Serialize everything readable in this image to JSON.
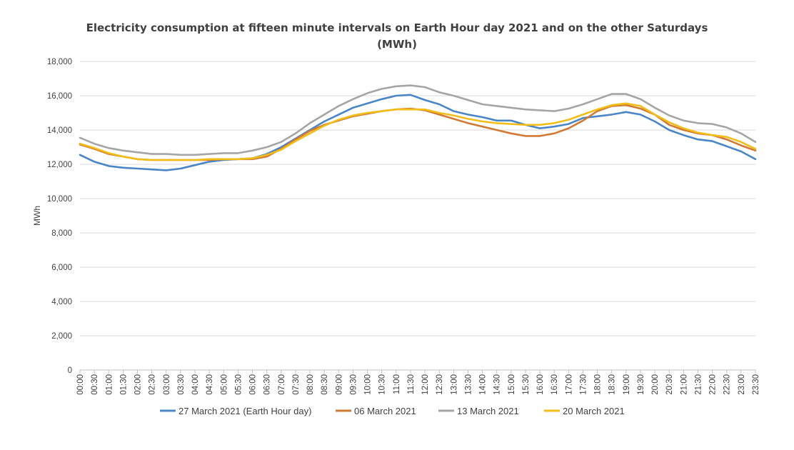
{
  "chart_data": {
    "type": "line",
    "title": "Electricity consumption at fifteen minute intervals on Earth Hour day 2021 and on the other Saturdays",
    "subtitle": "(MWh)",
    "xlabel": "",
    "ylabel": "MWh",
    "ylim": [
      0,
      18000
    ],
    "yticks": [
      "0",
      "2,000",
      "4,000",
      "6,000",
      "8,000",
      "10,000",
      "12,000",
      "14,000",
      "16,000",
      "18,000"
    ],
    "grid": true,
    "legend_position": "bottom",
    "categories": [
      "00:00",
      "00:30",
      "01:00",
      "01:30",
      "02:00",
      "02:30",
      "03:00",
      "03:30",
      "04:00",
      "04:30",
      "05:00",
      "05:30",
      "06:00",
      "06:30",
      "07:00",
      "07:30",
      "08:00",
      "08:30",
      "09:00",
      "09:30",
      "10:00",
      "10:30",
      "11:00",
      "11:30",
      "12:00",
      "12:30",
      "13:00",
      "13:30",
      "14:00",
      "14:30",
      "15:00",
      "15:30",
      "16:00",
      "16:30",
      "17:00",
      "17:30",
      "18:00",
      "18:30",
      "19:00",
      "19:30",
      "20:00",
      "20:30",
      "21:00",
      "21:30",
      "22:00",
      "22:30",
      "23:00",
      "23:30"
    ],
    "series": [
      {
        "name": "27 March 2021 (Earth Hour day)",
        "color": "#4a86c5",
        "values": [
          12550,
          12150,
          11900,
          11800,
          11750,
          11700,
          11650,
          11750,
          11950,
          12150,
          12250,
          12300,
          12350,
          12600,
          13000,
          13500,
          14000,
          14500,
          14900,
          15300,
          15550,
          15800,
          16000,
          16050,
          15750,
          15500,
          15100,
          14900,
          14750,
          14550,
          14550,
          14300,
          14100,
          14200,
          14350,
          14700,
          14800,
          14900,
          15050,
          14900,
          14500,
          14000,
          13700,
          13450,
          13350,
          13050,
          12750,
          12300
        ]
      },
      {
        "name": "06 March 2021",
        "color": "#d17a35",
        "values": [
          13150,
          12900,
          12600,
          12450,
          12300,
          12250,
          12250,
          12250,
          12250,
          12250,
          12300,
          12300,
          12300,
          12450,
          12900,
          13450,
          13950,
          14300,
          14550,
          14800,
          14950,
          15100,
          15200,
          15250,
          15150,
          14900,
          14650,
          14400,
          14200,
          14000,
          13800,
          13650,
          13650,
          13800,
          14100,
          14550,
          15100,
          15400,
          15450,
          15250,
          14900,
          14300,
          14000,
          13800,
          13700,
          13450,
          13100,
          12800
        ]
      },
      {
        "name": "13 March 2021",
        "color": "#a5a5a5",
        "values": [
          13550,
          13200,
          12950,
          12800,
          12700,
          12600,
          12600,
          12550,
          12550,
          12600,
          12650,
          12650,
          12800,
          13000,
          13300,
          13800,
          14400,
          14900,
          15400,
          15800,
          16150,
          16400,
          16550,
          16600,
          16500,
          16200,
          16000,
          15750,
          15500,
          15400,
          15300,
          15200,
          15150,
          15100,
          15250,
          15500,
          15800,
          16100,
          16100,
          15800,
          15300,
          14850,
          14550,
          14400,
          14350,
          14150,
          13800,
          13300
        ]
      },
      {
        "name": "20 March 2021",
        "color": "#f1be19",
        "values": [
          13200,
          12950,
          12650,
          12450,
          12300,
          12250,
          12250,
          12250,
          12250,
          12300,
          12300,
          12300,
          12350,
          12550,
          12850,
          13350,
          13800,
          14250,
          14600,
          14850,
          15000,
          15100,
          15200,
          15200,
          15200,
          15000,
          14850,
          14650,
          14500,
          14400,
          14350,
          14300,
          14300,
          14400,
          14600,
          14900,
          15200,
          15450,
          15550,
          15400,
          14900,
          14450,
          14100,
          13850,
          13700,
          13600,
          13300,
          12900
        ]
      }
    ]
  }
}
